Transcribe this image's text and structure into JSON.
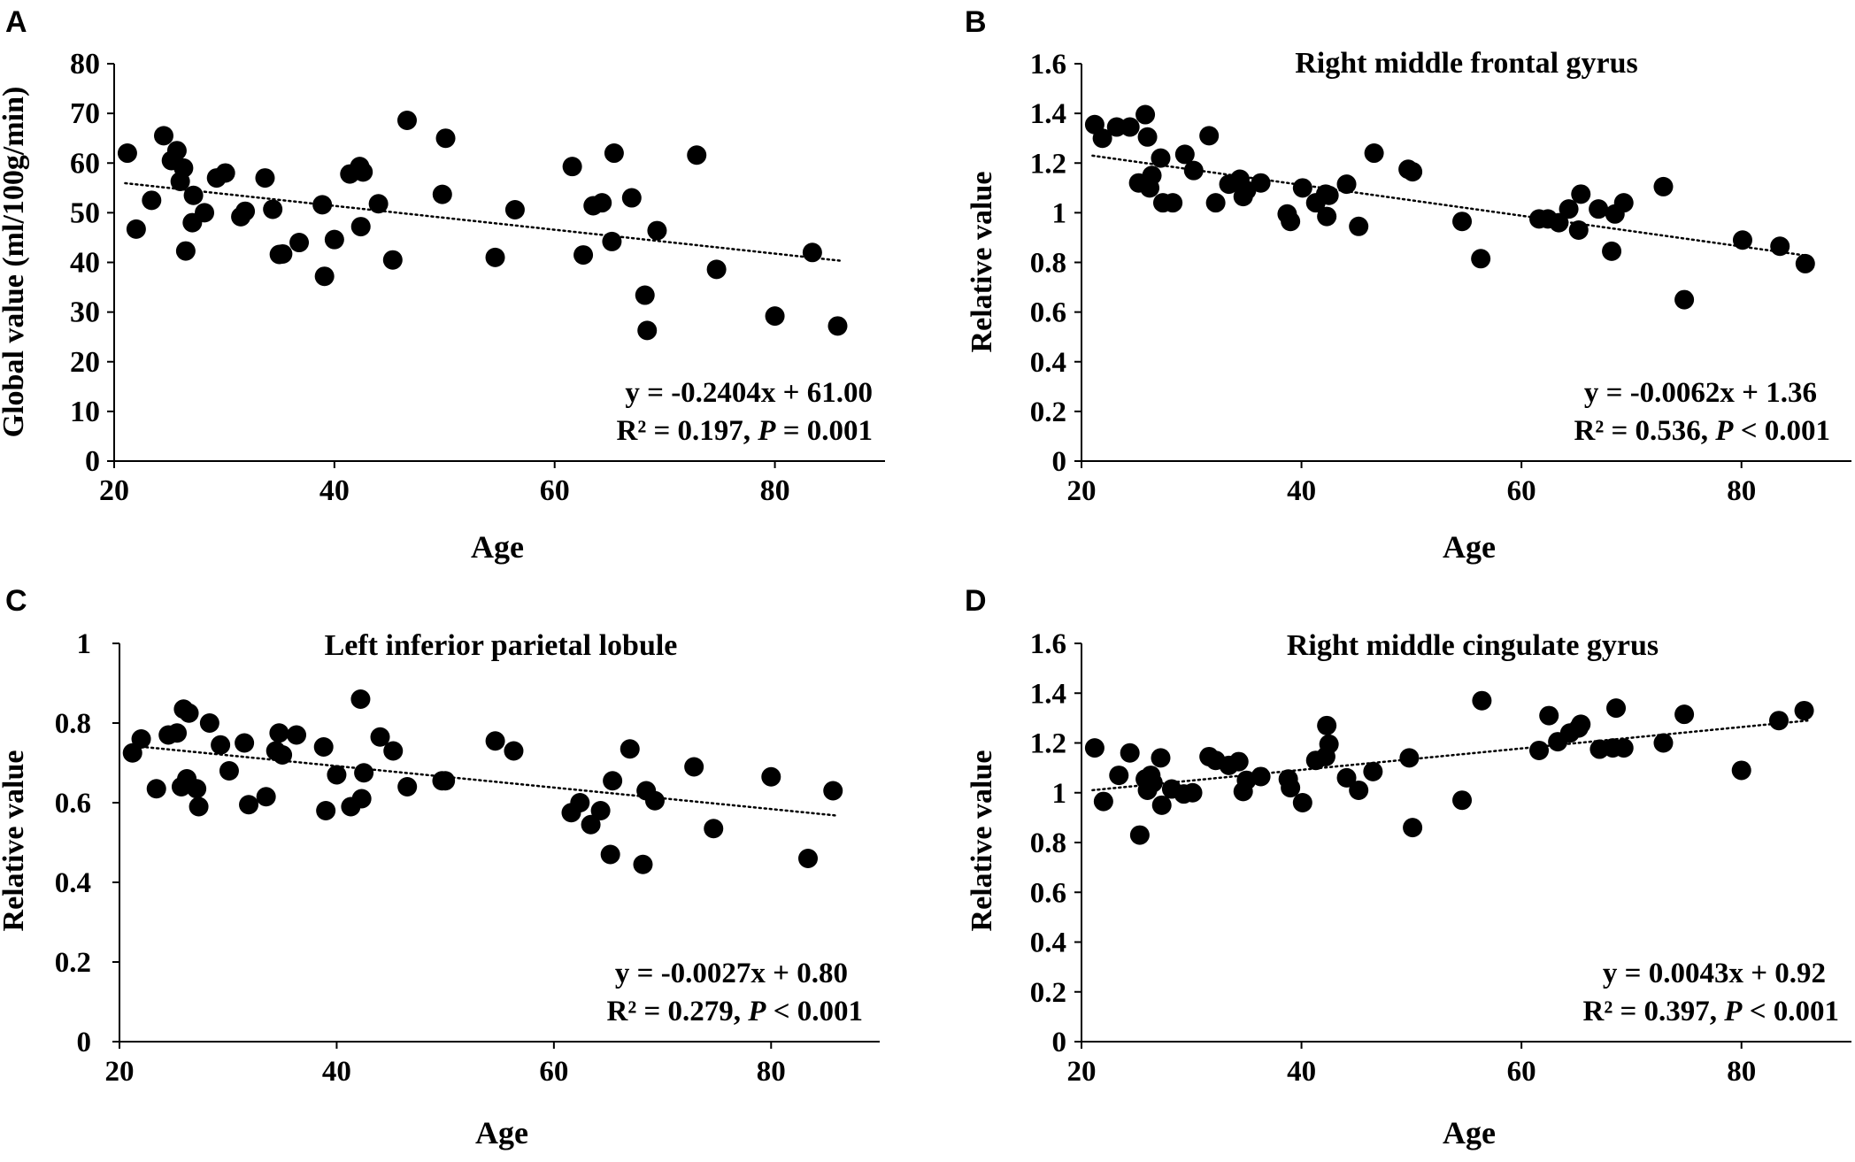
{
  "chart_data": [
    {
      "panel_label": "A",
      "type": "scatter",
      "title": "",
      "xlabel": "Age",
      "ylabel": "Global value (ml/100g/min)",
      "xlim": [
        20,
        90
      ],
      "ylim": [
        0,
        80
      ],
      "xticks": [
        20,
        40,
        60,
        80
      ],
      "yticks": [
        0,
        10,
        20,
        30,
        40,
        50,
        60,
        70,
        80
      ],
      "ytick_labels": [
        "0",
        "10",
        "20",
        "30",
        "40",
        "50",
        "60",
        "70",
        "80"
      ],
      "grid": false,
      "trendline": {
        "slope": -0.2404,
        "intercept": 61.0,
        "x_range": [
          21,
          86
        ],
        "style": "dotted"
      },
      "equation": "y = -0.2404x + 61.00",
      "stats": {
        "r2_text": "R² = 0.197, ",
        "p_symbol": "P",
        "p_text": " = 0.001"
      },
      "points": {
        "x": [
          21.2,
          22,
          23.4,
          24.5,
          25.2,
          25.7,
          26,
          26.3,
          26.5,
          27.1,
          27.2,
          28.2,
          29.3,
          30.1,
          31.5,
          31.9,
          33.7,
          34.4,
          35,
          35.3,
          36.8,
          38.9,
          39.1,
          40,
          41.4,
          42.3,
          42.4,
          42.6,
          44,
          45.3,
          46.6,
          49.8,
          50.1,
          54.6,
          56.4,
          61.6,
          62.6,
          63.5,
          64.3,
          65.2,
          65.4,
          67,
          68.2,
          68.4,
          69.3,
          72.9,
          74.7,
          80,
          83.4,
          85.7
        ],
        "y": [
          62,
          46.7,
          52.5,
          65.5,
          60.5,
          62.5,
          56.3,
          59,
          42.3,
          48,
          53.5,
          50,
          57,
          58,
          49.2,
          50.3,
          57,
          50.7,
          41.6,
          41.7,
          44,
          51.6,
          37.2,
          44.6,
          57.8,
          59.3,
          47.2,
          58.2,
          51.8,
          40.5,
          68.6,
          53.7,
          65,
          41,
          50.6,
          59.3,
          41.5,
          51.4,
          52,
          44.2,
          62,
          53,
          33.4,
          26.3,
          46.4,
          61.6,
          38.6,
          29.2,
          42,
          27.2
        ]
      }
    },
    {
      "panel_label": "B",
      "type": "scatter",
      "title": "Right middle frontal gyrus",
      "xlabel": "Age",
      "ylabel": "Relative value",
      "xlim": [
        20,
        90
      ],
      "ylim": [
        0,
        1.6
      ],
      "xticks": [
        20,
        40,
        60,
        80
      ],
      "yticks": [
        0,
        0.2,
        0.4,
        0.6,
        0.8,
        1,
        1.2,
        1.4,
        1.6
      ],
      "ytick_labels": [
        "0",
        "0.2",
        "0.4",
        "0.6",
        "0.8",
        "1",
        "1.2",
        "1.4",
        "1.6"
      ],
      "grid": false,
      "trendline": {
        "slope": -0.0062,
        "intercept": 1.36,
        "x_range": [
          21,
          86
        ],
        "style": "dotted"
      },
      "equation": "y = -0.0062x + 1.36",
      "stats": {
        "r2_text": "R² = 0.536, ",
        "p_symbol": "P",
        "p_text": " < 0.001"
      },
      "points": {
        "x": [
          21.2,
          21.9,
          23.2,
          24.4,
          25.2,
          25.8,
          26,
          26.2,
          26.4,
          27.2,
          27.4,
          28.3,
          29.4,
          30.2,
          31.6,
          32.2,
          33.4,
          34.4,
          34.7,
          35,
          36.3,
          38.7,
          39,
          40.1,
          41.3,
          42.2,
          42.3,
          42.5,
          44.1,
          45.2,
          46.6,
          49.7,
          50.1,
          54.6,
          56.3,
          61.6,
          62.4,
          63.4,
          64.3,
          65.2,
          65.4,
          67,
          68.2,
          68.5,
          69.3,
          72.9,
          74.8,
          80.1,
          83.5,
          85.8
        ],
        "y": [
          1.355,
          1.3,
          1.345,
          1.345,
          1.12,
          1.395,
          1.305,
          1.1,
          1.15,
          1.22,
          1.04,
          1.04,
          1.235,
          1.17,
          1.31,
          1.04,
          1.115,
          1.135,
          1.065,
          1.09,
          1.12,
          0.995,
          0.965,
          1.1,
          1.04,
          1.075,
          0.985,
          1.07,
          1.115,
          0.945,
          1.24,
          1.175,
          1.165,
          0.965,
          0.815,
          0.975,
          0.975,
          0.96,
          1.015,
          0.93,
          1.075,
          1.015,
          0.845,
          0.995,
          1.04,
          1.105,
          0.65,
          0.89,
          0.865,
          0.795
        ]
      }
    },
    {
      "panel_label": "C",
      "type": "scatter",
      "title": "Left inferior parietal lobule",
      "xlabel": "Age",
      "ylabel": "Relative value",
      "xlim": [
        20,
        90
      ],
      "ylim": [
        0,
        1
      ],
      "xticks": [
        20,
        40,
        60,
        80
      ],
      "yticks": [
        0,
        0.2,
        0.4,
        0.6,
        0.8,
        1
      ],
      "ytick_labels": [
        "0",
        "0.2",
        "0.4",
        "0.6",
        "0.8",
        "1"
      ],
      "grid": false,
      "trendline": {
        "slope": -0.0027,
        "intercept": 0.8,
        "x_range": [
          21,
          86
        ],
        "style": "dotted"
      },
      "equation": "y = -0.0027x + 0.80",
      "stats": {
        "r2_text": "R² = 0.279, ",
        "p_symbol": "P",
        "p_text": " < 0.001"
      },
      "points": {
        "x": [
          21.2,
          22,
          23.4,
          24.5,
          25.3,
          25.7,
          25.9,
          26.2,
          26.4,
          27.1,
          27.3,
          28.3,
          29.3,
          30.1,
          31.5,
          31.9,
          33.5,
          34.4,
          34.7,
          35,
          36.3,
          38.8,
          39,
          40,
          41.3,
          42.2,
          42.3,
          42.5,
          44,
          45.2,
          46.5,
          49.7,
          50,
          54.6,
          56.3,
          61.6,
          62.4,
          63.4,
          64.3,
          65.2,
          65.4,
          67,
          68.2,
          68.5,
          69.3,
          72.9,
          74.7,
          80,
          83.4,
          85.7
        ],
        "y": [
          0.725,
          0.76,
          0.635,
          0.77,
          0.775,
          0.64,
          0.835,
          0.66,
          0.825,
          0.635,
          0.59,
          0.8,
          0.745,
          0.68,
          0.75,
          0.595,
          0.615,
          0.73,
          0.775,
          0.72,
          0.77,
          0.74,
          0.58,
          0.67,
          0.59,
          0.86,
          0.61,
          0.675,
          0.765,
          0.73,
          0.64,
          0.655,
          0.655,
          0.755,
          0.73,
          0.575,
          0.6,
          0.545,
          0.58,
          0.47,
          0.655,
          0.735,
          0.445,
          0.63,
          0.605,
          0.69,
          0.535,
          0.665,
          0.46,
          0.63
        ]
      }
    },
    {
      "panel_label": "D",
      "type": "scatter",
      "title": "Right middle cingulate gyrus",
      "xlabel": "Age",
      "ylabel": "Relative value",
      "xlim": [
        20,
        90
      ],
      "ylim": [
        0,
        1.6
      ],
      "xticks": [
        20,
        40,
        60,
        80
      ],
      "yticks": [
        0,
        0.2,
        0.4,
        0.6,
        0.8,
        1,
        1.2,
        1.4,
        1.6
      ],
      "ytick_labels": [
        "0",
        "0.2",
        "0.4",
        "0.6",
        "0.8",
        "1",
        "1.2",
        "1.4",
        "1.6"
      ],
      "grid": false,
      "trendline": {
        "slope": 0.0043,
        "intercept": 0.92,
        "x_range": [
          21,
          86
        ],
        "style": "dotted"
      },
      "equation": "y = 0.0043x + 0.92",
      "stats": {
        "r2_text": "R² = 0.397, ",
        "p_symbol": "P",
        "p_text": " < 0.001"
      },
      "points": {
        "x": [
          21.2,
          22,
          23.4,
          24.4,
          25.3,
          25.8,
          26,
          26.3,
          26.5,
          27.2,
          27.3,
          28.2,
          29.3,
          30.1,
          31.6,
          32.2,
          33.4,
          34.3,
          34.7,
          35,
          36.3,
          38.8,
          39,
          40.1,
          41.3,
          42.2,
          42.3,
          42.5,
          44.1,
          45.2,
          46.5,
          49.8,
          50.1,
          54.6,
          56.4,
          61.6,
          62.5,
          63.3,
          64.4,
          65.2,
          65.4,
          67.1,
          68.3,
          68.6,
          69.3,
          72.9,
          74.8,
          80,
          83.4,
          85.7
        ],
        "y": [
          1.18,
          0.965,
          1.07,
          1.16,
          0.83,
          1.055,
          1.01,
          1.07,
          1.04,
          1.14,
          0.95,
          1.015,
          0.995,
          1.0,
          1.145,
          1.13,
          1.11,
          1.125,
          1.005,
          1.05,
          1.065,
          1.055,
          1.02,
          0.96,
          1.13,
          1.145,
          1.27,
          1.195,
          1.06,
          1.01,
          1.085,
          1.14,
          0.86,
          0.97,
          1.37,
          1.17,
          1.31,
          1.205,
          1.24,
          1.26,
          1.275,
          1.175,
          1.18,
          1.34,
          1.18,
          1.2,
          1.315,
          1.09,
          1.29,
          1.33
        ]
      }
    }
  ]
}
